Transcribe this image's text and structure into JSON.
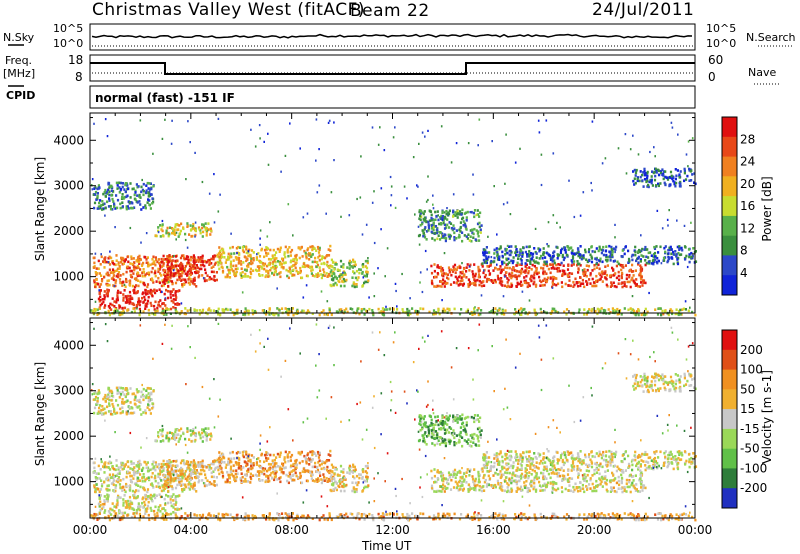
{
  "header": {
    "station": "Christmas Valley West (fitACF)",
    "beam": "Beam 22",
    "date": "24/Jul/2011"
  },
  "top_panels": {
    "left_labels": {
      "nsky": "N.Sky",
      "freq_line1": "Freq.",
      "freq_line2": "[MHz]",
      "cpid": "CPID"
    },
    "right_labels": {
      "nsearch": "N.Search",
      "nave": "Nave"
    },
    "noise_left_ticks": [
      "10^5",
      "10^0"
    ],
    "noise_right_ticks": [
      "10^5",
      "10^0"
    ],
    "freq_left_ticks": [
      "18",
      "8"
    ],
    "freq_right_ticks": [
      "60",
      "0"
    ],
    "cpid_text": "normal (fast) -151 IF"
  },
  "chart_data": [
    {
      "type": "heatmap",
      "name": "power",
      "ylabel": "Slant Range [km]",
      "xlabel": "",
      "y_ticks": [
        "4000",
        "3000",
        "2000",
        "1000"
      ],
      "ylim": [
        200,
        4600
      ],
      "xlim": [
        0,
        24
      ],
      "colorbar": {
        "label": "Power [dB]",
        "ticks": [
          "28",
          "24",
          "20",
          "16",
          "12",
          "8",
          "4"
        ],
        "range": [
          0,
          30
        ],
        "colors": [
          "#1024d8",
          "#2c48c8",
          "#3a8f3e",
          "#58b04a",
          "#c8dc30",
          "#f0b020",
          "#f08020",
          "#e84818",
          "#e01010"
        ]
      },
      "bands": [
        {
          "t0": 0.1,
          "t1": 4.2,
          "r0": 800,
          "r1": 1500,
          "level": 0.75
        },
        {
          "t0": 0.3,
          "t1": 3.5,
          "r0": 300,
          "r1": 750,
          "level": 0.95
        },
        {
          "t0": 2.8,
          "t1": 5.0,
          "r0": 900,
          "r1": 1500,
          "level": 0.9
        },
        {
          "t0": 5.0,
          "t1": 9.5,
          "r0": 1000,
          "r1": 1700,
          "level": 0.6
        },
        {
          "t0": 9.5,
          "t1": 11.0,
          "r0": 800,
          "r1": 1400,
          "level": 0.45
        },
        {
          "t0": 0.1,
          "t1": 2.5,
          "r0": 2500,
          "r1": 3100,
          "level": 0.25
        },
        {
          "t0": 2.5,
          "t1": 4.8,
          "r0": 1900,
          "r1": 2200,
          "level": 0.55
        },
        {
          "t0": 13.0,
          "t1": 15.5,
          "r0": 1800,
          "r1": 2500,
          "level": 0.3
        },
        {
          "t0": 13.5,
          "t1": 22.0,
          "r0": 800,
          "r1": 1300,
          "level": 0.85
        },
        {
          "t0": 15.5,
          "t1": 24.0,
          "r0": 1300,
          "r1": 1700,
          "level": 0.2
        },
        {
          "t0": 21.5,
          "t1": 24.0,
          "r0": 3000,
          "r1": 3400,
          "level": 0.15
        },
        {
          "t0": 0.0,
          "t1": 24.0,
          "r0": 180,
          "r1": 330,
          "level": 0.5
        }
      ]
    },
    {
      "type": "heatmap",
      "name": "velocity",
      "ylabel": "Slant Range [km]",
      "xlabel": "Time UT",
      "x_ticks": [
        "00:00",
        "04:00",
        "08:00",
        "12:00",
        "16:00",
        "20:00",
        "00:00"
      ],
      "y_ticks": [
        "4000",
        "3000",
        "2000",
        "1000"
      ],
      "ylim": [
        200,
        4600
      ],
      "xlim": [
        0,
        24
      ],
      "colorbar": {
        "label": "Velocity [m s-1]",
        "ticks": [
          "200",
          "100",
          "50",
          "15",
          "-15",
          "-50",
          "-100",
          "-200"
        ],
        "colors": [
          "#2030c0",
          "#2e7d3a",
          "#60c048",
          "#9ad858",
          "#c8c8c8",
          "#f0b030",
          "#f09020",
          "#e05018",
          "#e01010"
        ]
      },
      "bands": [
        {
          "t0": 0.1,
          "t1": 4.2,
          "r0": 800,
          "r1": 1500,
          "level": 0.5
        },
        {
          "t0": 0.3,
          "t1": 3.5,
          "r0": 300,
          "r1": 750,
          "level": 0.5
        },
        {
          "t0": 2.8,
          "t1": 5.0,
          "r0": 900,
          "r1": 1500,
          "level": 0.6
        },
        {
          "t0": 5.0,
          "t1": 9.5,
          "r0": 1000,
          "r1": 1700,
          "level": 0.65
        },
        {
          "t0": 9.5,
          "t1": 11.0,
          "r0": 800,
          "r1": 1400,
          "level": 0.55
        },
        {
          "t0": 0.1,
          "t1": 2.5,
          "r0": 2500,
          "r1": 3100,
          "level": 0.5
        },
        {
          "t0": 2.5,
          "t1": 4.8,
          "r0": 1900,
          "r1": 2200,
          "level": 0.45
        },
        {
          "t0": 13.0,
          "t1": 15.5,
          "r0": 1800,
          "r1": 2500,
          "level": 0.3
        },
        {
          "t0": 13.5,
          "t1": 22.0,
          "r0": 800,
          "r1": 1300,
          "level": 0.5
        },
        {
          "t0": 15.5,
          "t1": 24.0,
          "r0": 1300,
          "r1": 1700,
          "level": 0.5
        },
        {
          "t0": 21.5,
          "t1": 24.0,
          "r0": 3000,
          "r1": 3400,
          "level": 0.5
        },
        {
          "t0": 0.0,
          "t1": 24.0,
          "r0": 180,
          "r1": 330,
          "level": 0.65
        }
      ]
    }
  ]
}
